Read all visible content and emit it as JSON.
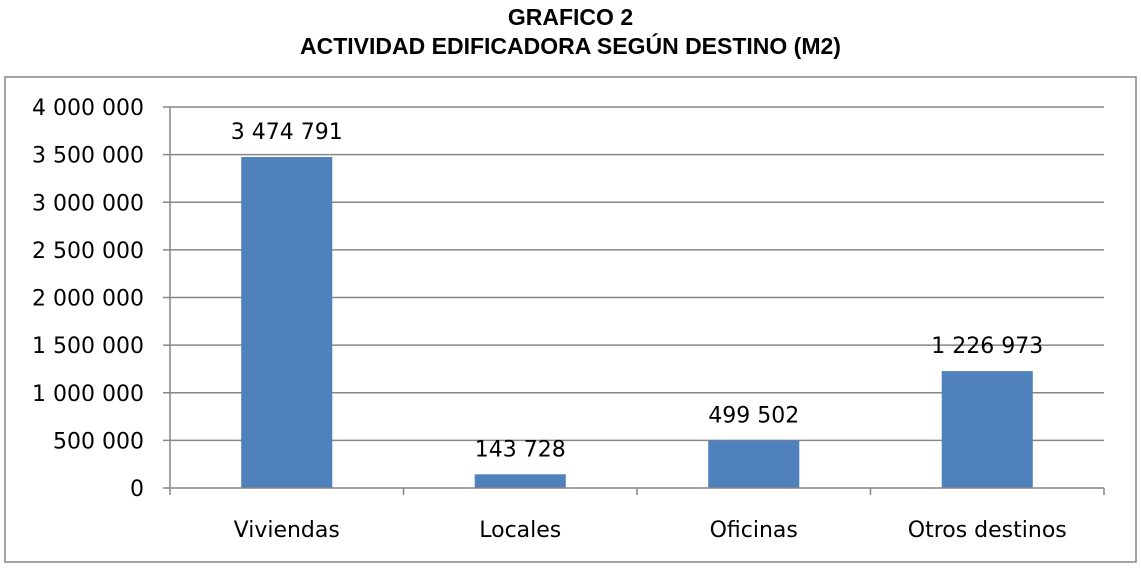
{
  "chart_data": {
    "type": "bar",
    "title": "GRAFICO 2",
    "subtitle": "ACTIVIDAD EDIFICADORA SEGÚN DESTINO (M2)",
    "categories": [
      "Viviendas",
      "Locales",
      "Oficinas",
      "Otros destinos"
    ],
    "values": [
      3474791,
      143728,
      499502,
      1226973
    ],
    "value_labels": [
      "3 474 791",
      "143 728",
      "499 502",
      "1 226 973"
    ],
    "ylim": [
      0,
      4000000
    ],
    "yticks": [
      0,
      500000,
      1000000,
      1500000,
      2000000,
      2500000,
      3000000,
      3500000,
      4000000
    ],
    "ytick_labels": [
      "0",
      "500 000",
      "1 000 000",
      "1 500 000",
      "2 000 000",
      "2 500 000",
      "3 000 000",
      "3 500 000",
      "4 000 000"
    ],
    "xlabel": "",
    "ylabel": "",
    "grid": true,
    "legend": "none",
    "bar_color": "#4F81BD",
    "grid_color": "#868686",
    "border_color": "#868686"
  }
}
